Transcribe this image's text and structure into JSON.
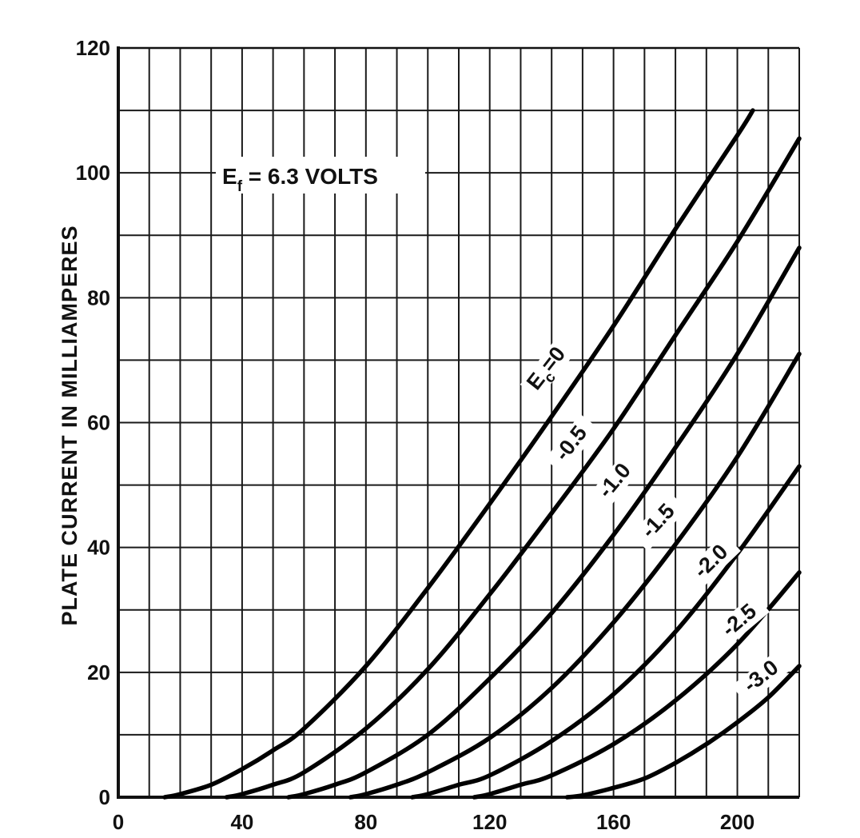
{
  "chart_data": {
    "type": "line",
    "title": "",
    "xlabel": "",
    "ylabel": "PLATE CURRENT IN MILLIAMPERES",
    "xlim": [
      0,
      220
    ],
    "ylim": [
      0,
      120
    ],
    "x_ticks": [
      "0",
      "40",
      "80",
      "120",
      "160",
      "200"
    ],
    "y_ticks": [
      "0",
      "20",
      "40",
      "60",
      "80",
      "100",
      "120"
    ],
    "grid": true,
    "legend": "none",
    "annotation": {
      "main": "E",
      "sub": "f",
      "rest": " = 6.3 VOLTS"
    },
    "series": [
      {
        "label_main": "E",
        "label_sub": "c",
        "label_rest": "=0",
        "x": [
          15,
          20,
          30,
          40,
          50,
          60,
          80,
          100,
          120,
          140,
          160,
          180,
          200,
          205
        ],
        "y": [
          0,
          0.5,
          2,
          4.5,
          7.5,
          11,
          21,
          33.5,
          47,
          61,
          75.5,
          91,
          106,
          110
        ]
      },
      {
        "name": "-0.5",
        "x": [
          35,
          40,
          50,
          60,
          80,
          100,
          120,
          140,
          160,
          180,
          200,
          220
        ],
        "y": [
          0,
          0.5,
          2,
          4,
          11,
          20.5,
          32.5,
          45.5,
          59,
          74,
          89,
          105.5
        ]
      },
      {
        "name": "-1.0",
        "x": [
          55,
          60,
          70,
          80,
          100,
          120,
          140,
          160,
          180,
          200,
          220
        ],
        "y": [
          0,
          0.5,
          2,
          4,
          10,
          19,
          29.5,
          42,
          56,
          71,
          88
        ]
      },
      {
        "name": "-1.5",
        "x": [
          75,
          80,
          90,
          100,
          120,
          140,
          160,
          180,
          200,
          220
        ],
        "y": [
          0,
          0.5,
          2,
          4,
          9.5,
          17.5,
          28,
          40.5,
          54.5,
          71
        ]
      },
      {
        "name": "-2.0",
        "x": [
          95,
          100,
          110,
          120,
          140,
          160,
          180,
          200,
          220
        ],
        "y": [
          0,
          0.5,
          2,
          3.5,
          9,
          16.5,
          26.5,
          39,
          53
        ]
      },
      {
        "name": "-2.5",
        "x": [
          115,
          120,
          130,
          140,
          160,
          180,
          200,
          220
        ],
        "y": [
          0,
          0.5,
          2,
          3.5,
          8.5,
          15.5,
          24.5,
          36
        ]
      },
      {
        "name": "-3.0",
        "x": [
          145,
          150,
          160,
          170,
          180,
          190,
          200,
          210,
          220
        ],
        "y": [
          0,
          0.3,
          1.5,
          3,
          5.5,
          8.5,
          12,
          16,
          21
        ]
      }
    ]
  }
}
